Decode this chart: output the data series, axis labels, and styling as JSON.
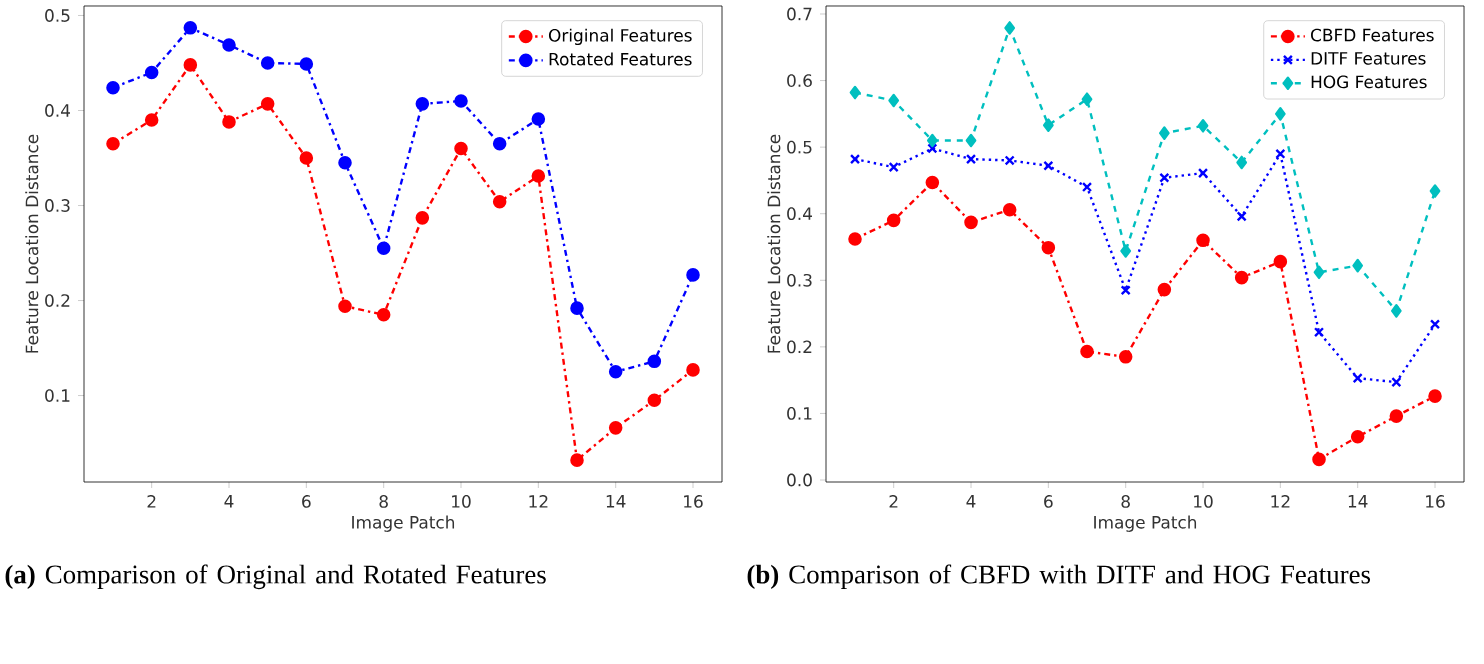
{
  "chart_data": [
    {
      "type": "line",
      "xlabel": "Image Patch",
      "ylabel": "Feature Location Distance",
      "x": [
        1,
        2,
        3,
        4,
        5,
        6,
        7,
        8,
        9,
        10,
        11,
        12,
        13,
        14,
        15,
        16
      ],
      "series": [
        {
          "name": "Original Features",
          "color": "#ff0000",
          "marker": "circle",
          "line_style": "dashdot",
          "values": [
            0.365,
            0.39,
            0.448,
            0.388,
            0.407,
            0.35,
            0.194,
            0.185,
            0.287,
            0.36,
            0.304,
            0.331,
            0.032,
            0.066,
            0.095,
            0.127
          ]
        },
        {
          "name": "Rotated Features",
          "color": "#0000ff",
          "marker": "circle",
          "line_style": "dashdot",
          "values": [
            0.424,
            0.44,
            0.487,
            0.469,
            0.45,
            0.449,
            0.345,
            0.255,
            0.407,
            0.41,
            0.365,
            0.391,
            0.192,
            0.125,
            0.136,
            0.227
          ]
        }
      ],
      "xlim": [
        0.25,
        16.75
      ],
      "ylim": [
        0.009,
        0.51
      ],
      "xticks": [
        2,
        4,
        6,
        8,
        10,
        12,
        14,
        16
      ],
      "yticks": [
        0.1,
        0.2,
        0.3,
        0.4,
        0.5
      ],
      "grid": false,
      "legend": "top right",
      "annotations": [
        "**(a)** Comparison of Original and Rotated Features"
      ]
    },
    {
      "type": "line",
      "xlabel": "Image Patch",
      "ylabel": "Feature Location Distance",
      "x": [
        1,
        2,
        3,
        4,
        5,
        6,
        7,
        8,
        9,
        10,
        11,
        12,
        13,
        14,
        15,
        16
      ],
      "series": [
        {
          "name": "CBFD Features",
          "color": "#ff0000",
          "marker": "circle",
          "line_style": "dashdot",
          "values": [
            0.362,
            0.39,
            0.447,
            0.387,
            0.406,
            0.349,
            0.193,
            0.185,
            0.286,
            0.36,
            0.304,
            0.328,
            0.031,
            0.065,
            0.096,
            0.126
          ]
        },
        {
          "name": "DITF Features",
          "color": "#0000ff",
          "marker": "cross",
          "line_style": "dotted",
          "values": [
            0.482,
            0.47,
            0.498,
            0.482,
            0.48,
            0.472,
            0.44,
            0.285,
            0.454,
            0.461,
            0.396,
            0.49,
            0.222,
            0.153,
            0.147,
            0.234
          ]
        },
        {
          "name": "HOG Features",
          "color": "#00bfbf",
          "marker": "diamond",
          "line_style": "dashed",
          "values": [
            0.582,
            0.57,
            0.51,
            0.51,
            0.679,
            0.533,
            0.572,
            0.344,
            0.521,
            0.532,
            0.477,
            0.55,
            0.312,
            0.322,
            0.254,
            0.434
          ]
        }
      ],
      "xlim": [
        0.25,
        16.75
      ],
      "ylim": [
        -0.003,
        0.712
      ],
      "xticks": [
        2,
        4,
        6,
        8,
        10,
        12,
        14,
        16
      ],
      "yticks": [
        {
          "value": 0,
          "label": "0.0"
        },
        0.1,
        0.2,
        0.3,
        0.4,
        0.5,
        0.6,
        0.7
      ],
      "grid": false,
      "legend": "top right",
      "annotations": [
        "**(b)** Comparison of CBFD with DITF and HOG Features"
      ]
    }
  ]
}
